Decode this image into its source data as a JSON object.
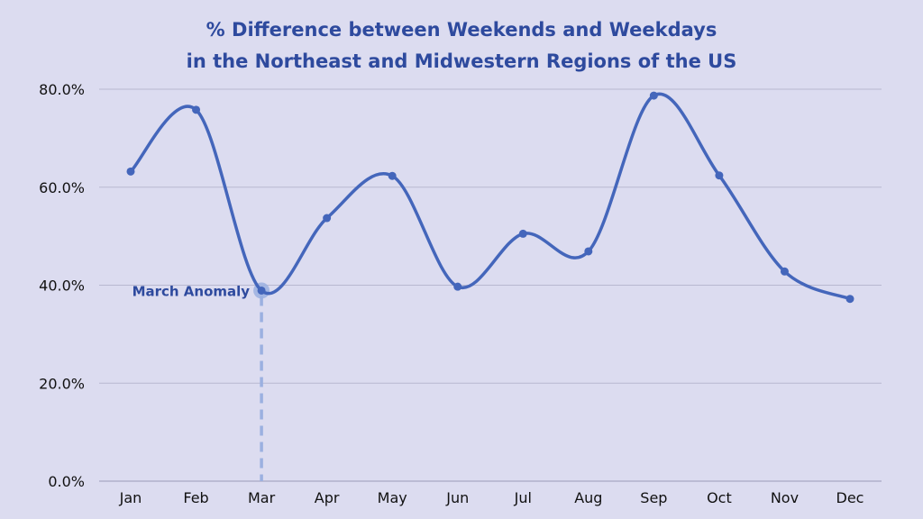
{
  "chart_data": {
    "type": "line",
    "title_line1": "% Difference between Weekends and Weekdays",
    "title_line2": "in the Northeast and Midwestern Regions of the US",
    "categories": [
      "Jan",
      "Feb",
      "Mar",
      "Apr",
      "May",
      "Jun",
      "Jul",
      "Aug",
      "Sep",
      "Oct",
      "Nov",
      "Dec"
    ],
    "series": [
      {
        "values": [
          63.2,
          75.8,
          38.9,
          53.7,
          62.3,
          39.7,
          50.5,
          46.9,
          78.7,
          62.4,
          42.8,
          37.2
        ]
      }
    ],
    "ylim": [
      0,
      80
    ],
    "yticks": [
      0,
      20,
      40,
      60,
      80
    ],
    "ytick_labels": [
      "0.0%",
      "20.0%",
      "40.0%",
      "60.0%",
      "80.0%"
    ],
    "grid": true,
    "smooth": true,
    "annotation": {
      "text": "March Anomaly",
      "category": "Mar"
    },
    "colors": {
      "background": "#dcdcf0",
      "line": "#4466bb",
      "title": "#2e4a9e",
      "annotation": "#2e4a9e",
      "annotation_line": "#9bb0e0",
      "grid": "#b8b8d0"
    }
  }
}
